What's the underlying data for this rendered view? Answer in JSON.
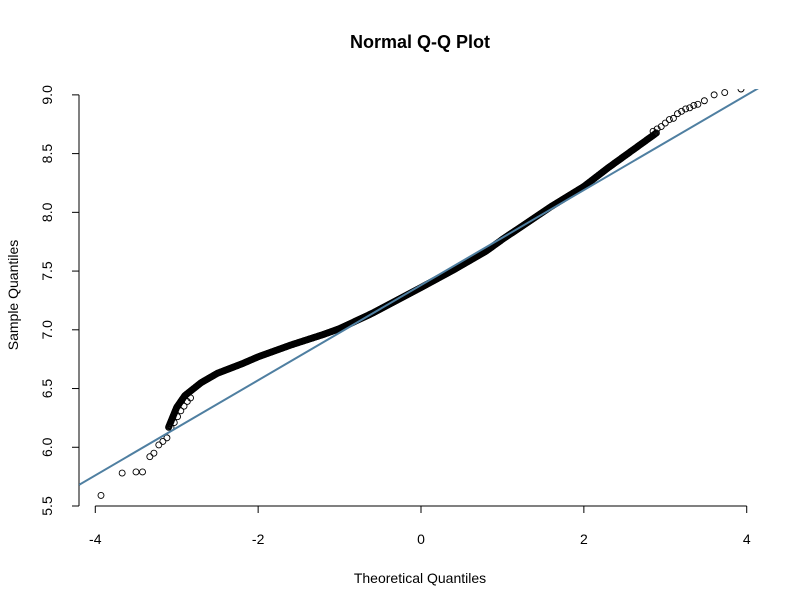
{
  "chart_data": {
    "type": "scatter",
    "title": "Normal Q-Q Plot",
    "xlabel": "Theoretical Quantiles",
    "ylabel": "Sample Quantiles",
    "xlim": [
      -4.2,
      4.2
    ],
    "ylim": [
      5.5,
      9.05
    ],
    "x_ticks": [
      -4,
      -2,
      0,
      2,
      4
    ],
    "y_ticks": [
      5.5,
      6.0,
      6.5,
      7.0,
      7.5,
      8.0,
      8.5,
      9.0
    ],
    "x_tick_labels": [
      "-4",
      "-2",
      "0",
      "2",
      "4"
    ],
    "y_tick_labels": [
      "5.5",
      "6.0",
      "6.5",
      "7.0",
      "7.5",
      "8.0",
      "8.5",
      "9.0"
    ],
    "grid": false,
    "frame": "open (left and bottom axes only)",
    "point_style": "open-circle",
    "point_color": "#000000",
    "reference_line": {
      "color": "#4f7fa1",
      "points": [
        [
          -4.2,
          5.68
        ],
        [
          4.2,
          9.08
        ]
      ]
    },
    "curve": [
      [
        -3.1,
        6.17
      ],
      [
        -3.0,
        6.34
      ],
      [
        -2.9,
        6.44
      ],
      [
        -2.7,
        6.55
      ],
      [
        -2.5,
        6.63
      ],
      [
        -2.2,
        6.71
      ],
      [
        -2.0,
        6.77
      ],
      [
        -1.6,
        6.87
      ],
      [
        -1.2,
        6.96
      ],
      [
        -1.0,
        7.01
      ],
      [
        -0.6,
        7.14
      ],
      [
        -0.3,
        7.25
      ],
      [
        0.0,
        7.36
      ],
      [
        0.4,
        7.51
      ],
      [
        0.8,
        7.67
      ],
      [
        1.0,
        7.77
      ],
      [
        1.3,
        7.91
      ],
      [
        1.6,
        8.05
      ],
      [
        2.0,
        8.22
      ],
      [
        2.3,
        8.38
      ],
      [
        2.5,
        8.48
      ],
      [
        2.7,
        8.58
      ],
      [
        2.9,
        8.68
      ]
    ],
    "tail_points": [
      [
        -3.93,
        5.59
      ],
      [
        -3.67,
        5.78
      ],
      [
        -3.5,
        5.79
      ],
      [
        -3.42,
        5.79
      ],
      [
        -3.33,
        5.92
      ],
      [
        -3.28,
        5.95
      ],
      [
        -3.22,
        6.02
      ],
      [
        -3.17,
        6.05
      ],
      [
        -3.12,
        6.08
      ],
      [
        -3.07,
        6.17
      ],
      [
        -3.03,
        6.21
      ],
      [
        -2.99,
        6.26
      ],
      [
        -2.95,
        6.31
      ],
      [
        -2.91,
        6.35
      ],
      [
        -2.87,
        6.39
      ],
      [
        -2.83,
        6.42
      ],
      [
        2.85,
        8.69
      ],
      [
        2.9,
        8.71
      ],
      [
        2.95,
        8.73
      ],
      [
        3.0,
        8.76
      ],
      [
        3.05,
        8.79
      ],
      [
        3.1,
        8.8
      ],
      [
        3.15,
        8.84
      ],
      [
        3.2,
        8.86
      ],
      [
        3.25,
        8.88
      ],
      [
        3.3,
        8.89
      ],
      [
        3.35,
        8.91
      ],
      [
        3.4,
        8.92
      ],
      [
        3.48,
        8.95
      ],
      [
        3.6,
        9.0
      ],
      [
        3.73,
        9.02
      ],
      [
        3.93,
        9.05
      ]
    ]
  }
}
